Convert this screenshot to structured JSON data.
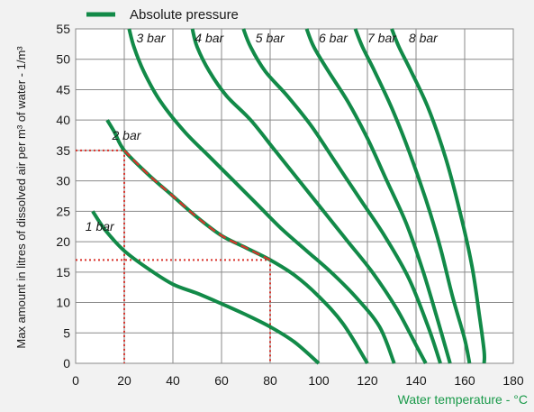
{
  "chart_data": {
    "type": "line",
    "title": "",
    "xlabel": "Water temperature - °C",
    "ylabel": "Max amount in litres of dissolved air per m³ of water - 1/m³",
    "xlim": [
      0,
      180
    ],
    "ylim": [
      0,
      55
    ],
    "xticks": [
      0,
      20,
      40,
      60,
      80,
      100,
      120,
      140,
      160,
      180
    ],
    "yticks": [
      0,
      5,
      10,
      15,
      20,
      25,
      30,
      35,
      40,
      45,
      50,
      55
    ],
    "grid": true,
    "legend": {
      "position": "top-left",
      "entries": [
        "Absolute pressure"
      ]
    },
    "line_color": "#128a48",
    "highlight_color": "#d9332b",
    "series": [
      {
        "name": "1 bar",
        "points": [
          [
            7,
            25
          ],
          [
            12,
            22
          ],
          [
            20,
            18.5
          ],
          [
            30,
            15.5
          ],
          [
            40,
            13
          ],
          [
            50,
            11.5
          ],
          [
            60,
            9.8
          ],
          [
            70,
            8
          ],
          [
            80,
            6
          ],
          [
            90,
            3.5
          ],
          [
            100,
            0
          ]
        ]
      },
      {
        "name": "2 bar",
        "points": [
          [
            13,
            40
          ],
          [
            16,
            38
          ],
          [
            20,
            35
          ],
          [
            30,
            31
          ],
          [
            40,
            27.5
          ],
          [
            50,
            24
          ],
          [
            60,
            21
          ],
          [
            70,
            19
          ],
          [
            80,
            17
          ],
          [
            90,
            14.5
          ],
          [
            100,
            11
          ],
          [
            110,
            6.5
          ],
          [
            120,
            0
          ]
        ]
      },
      {
        "name": "3 bar",
        "points": [
          [
            22,
            55
          ],
          [
            24,
            52
          ],
          [
            28,
            48
          ],
          [
            35,
            43
          ],
          [
            45,
            38
          ],
          [
            55,
            34
          ],
          [
            65,
            30
          ],
          [
            75,
            26
          ],
          [
            85,
            22
          ],
          [
            95,
            18.5
          ],
          [
            105,
            15
          ],
          [
            115,
            11
          ],
          [
            125,
            6
          ],
          [
            131,
            0
          ]
        ]
      },
      {
        "name": "4 bar",
        "points": [
          [
            48,
            55
          ],
          [
            50,
            52
          ],
          [
            55,
            48
          ],
          [
            62,
            44
          ],
          [
            72,
            40
          ],
          [
            82,
            35
          ],
          [
            92,
            30
          ],
          [
            102,
            25
          ],
          [
            112,
            20
          ],
          [
            122,
            15
          ],
          [
            132,
            9
          ],
          [
            140,
            3
          ],
          [
            144,
            0
          ]
        ]
      },
      {
        "name": "5 bar",
        "points": [
          [
            69,
            55
          ],
          [
            72,
            52
          ],
          [
            78,
            48
          ],
          [
            87,
            44
          ],
          [
            97,
            39
          ],
          [
            107,
            33
          ],
          [
            117,
            27
          ],
          [
            127,
            21
          ],
          [
            137,
            14
          ],
          [
            145,
            6
          ],
          [
            150,
            0
          ]
        ]
      },
      {
        "name": "6 bar",
        "points": [
          [
            95,
            55
          ],
          [
            98,
            52
          ],
          [
            104,
            48
          ],
          [
            112,
            43
          ],
          [
            120,
            37
          ],
          [
            128,
            30
          ],
          [
            136,
            23
          ],
          [
            143,
            15
          ],
          [
            149,
            7
          ],
          [
            154,
            0
          ]
        ]
      },
      {
        "name": "7 bar",
        "points": [
          [
            115,
            55
          ],
          [
            118,
            52
          ],
          [
            123,
            48
          ],
          [
            130,
            42
          ],
          [
            137,
            35
          ],
          [
            144,
            27
          ],
          [
            150,
            19
          ],
          [
            155,
            11
          ],
          [
            160,
            4
          ],
          [
            162,
            0
          ]
        ]
      },
      {
        "name": "8 bar",
        "points": [
          [
            130,
            55
          ],
          [
            133,
            52
          ],
          [
            138,
            48
          ],
          [
            145,
            42
          ],
          [
            152,
            34
          ],
          [
            158,
            25
          ],
          [
            163,
            16
          ],
          [
            166,
            8
          ],
          [
            168,
            2
          ],
          [
            168,
            0
          ]
        ]
      }
    ],
    "highlight_segment": [
      [
        20,
        35
      ],
      [
        80,
        17
      ]
    ],
    "reference_lines": [
      {
        "from": [
          0,
          35
        ],
        "to": [
          20,
          35
        ]
      },
      {
        "from": [
          20,
          35
        ],
        "to": [
          20,
          0
        ]
      },
      {
        "from": [
          0,
          17
        ],
        "to": [
          80,
          17
        ]
      },
      {
        "from": [
          80,
          17
        ],
        "to": [
          80,
          0
        ]
      }
    ],
    "curve_labels": [
      {
        "text": "3 bar",
        "x": 25,
        "y": 52.8
      },
      {
        "text": "4 bar",
        "x": 49,
        "y": 52.8
      },
      {
        "text": "5 bar",
        "x": 74,
        "y": 52.8
      },
      {
        "text": "6 bar",
        "x": 100,
        "y": 52.8
      },
      {
        "text": "7 bar",
        "x": 120,
        "y": 52.8
      },
      {
        "text": "8 bar",
        "x": 137,
        "y": 52.8
      },
      {
        "text": "2 bar",
        "x": 15,
        "y": 36.8
      },
      {
        "text": "1 bar",
        "x": 4,
        "y": 21.8
      }
    ]
  }
}
